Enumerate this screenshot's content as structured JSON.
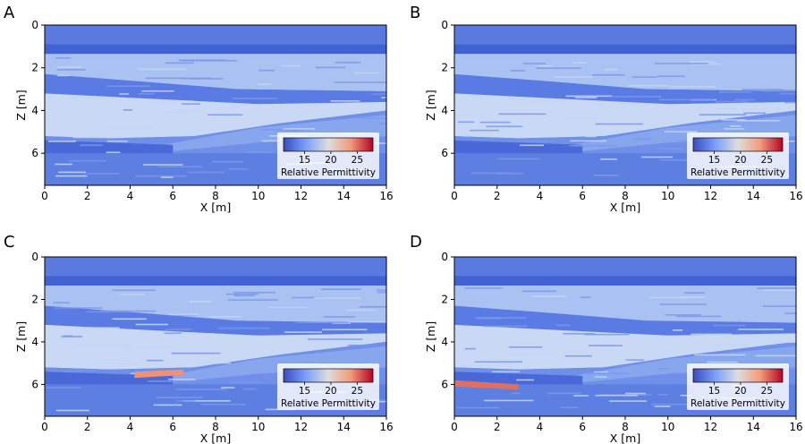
{
  "chart_data": [
    {
      "type": "heatmap",
      "panel_label": "A",
      "xlabel": "X [m]",
      "ylabel": "Z [m]",
      "xlim": [
        0,
        16
      ],
      "ylim": [
        7.5,
        0
      ],
      "xticks": [
        0,
        2,
        4,
        6,
        8,
        10,
        12,
        14,
        16
      ],
      "yticks": [
        0,
        2,
        4,
        6
      ],
      "colorbar": {
        "label": "Relative Permittivity",
        "ticks": [
          15,
          20,
          25
        ],
        "range": [
          11,
          28
        ],
        "colormap": "coolwarm",
        "placement": "lower-right"
      },
      "high_permittivity_lens": null
    },
    {
      "type": "heatmap",
      "panel_label": "B",
      "xlabel": "X [m]",
      "ylabel": "Z [m]",
      "xlim": [
        0,
        16
      ],
      "ylim": [
        7.5,
        0
      ],
      "xticks": [
        0,
        2,
        4,
        6,
        8,
        10,
        12,
        14,
        16
      ],
      "yticks": [
        0,
        2,
        4,
        6
      ],
      "colorbar": {
        "label": "Relative Permittivity",
        "ticks": [
          15,
          20,
          25
        ],
        "range": [
          11,
          28
        ],
        "colormap": "coolwarm",
        "placement": "lower-right"
      },
      "high_permittivity_lens": null
    },
    {
      "type": "heatmap",
      "panel_label": "C",
      "xlabel": "X [m]",
      "ylabel": "Z [m]",
      "xlim": [
        0,
        16
      ],
      "ylim": [
        7.5,
        0
      ],
      "xticks": [
        0,
        2,
        4,
        6,
        8,
        10,
        12,
        14,
        16
      ],
      "yticks": [
        0,
        2,
        4,
        6
      ],
      "colorbar": {
        "label": "Relative Permittivity",
        "ticks": [
          15,
          20,
          25
        ],
        "range": [
          11,
          28
        ],
        "colormap": "coolwarm",
        "placement": "lower-right"
      },
      "high_permittivity_lens": {
        "x": [
          4.2,
          6.5
        ],
        "z": [
          5.4,
          5.3
        ],
        "value": 24
      }
    },
    {
      "type": "heatmap",
      "panel_label": "D",
      "xlabel": "X [m]",
      "ylabel": "Z [m]",
      "xlim": [
        0,
        16
      ],
      "ylim": [
        7.5,
        0
      ],
      "xticks": [
        0,
        2,
        4,
        6,
        8,
        10,
        12,
        14,
        16
      ],
      "yticks": [
        0,
        2,
        4,
        6
      ],
      "colorbar": {
        "label": "Relative Permittivity",
        "ticks": [
          15,
          20,
          25
        ],
        "range": [
          11,
          28
        ],
        "colormap": "coolwarm",
        "placement": "lower-right"
      },
      "high_permittivity_lens": {
        "x": [
          0,
          3.0
        ],
        "z": [
          5.8,
          6.0
        ],
        "value": 25
      }
    }
  ],
  "colors": {
    "deep_blue": "#4a68d8",
    "mid_blue": "#6f8fe8",
    "light_blue": "#a9c2f2",
    "pale_blue": "#c9d8f4",
    "lens_orange": "#e7896c"
  }
}
